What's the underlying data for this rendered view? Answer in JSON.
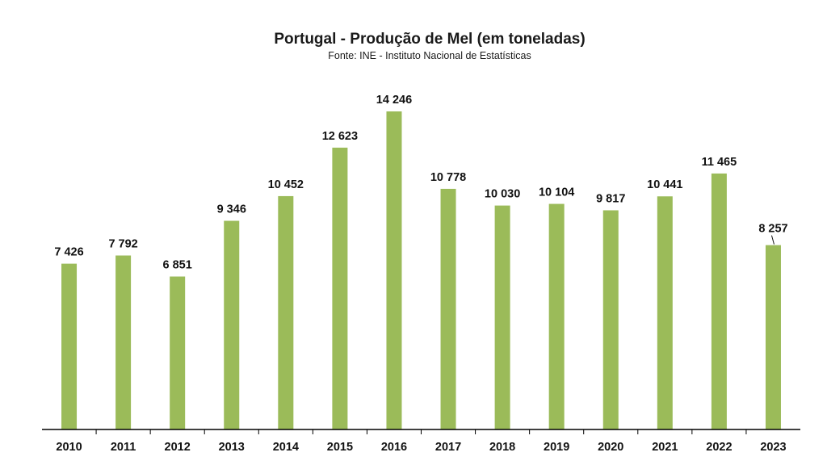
{
  "chart_data": {
    "type": "bar",
    "title": "Portugal - Produção de Mel (em toneladas)",
    "subtitle": "Fonte: INE - Instituto Nacional de Estatísticas",
    "categories": [
      "2010",
      "2011",
      "2012",
      "2013",
      "2014",
      "2015",
      "2016",
      "2017",
      "2018",
      "2019",
      "2020",
      "2021",
      "2022",
      "2023"
    ],
    "series": [
      {
        "values": [
          7426,
          7792,
          6851,
          9346,
          10452,
          12623,
          14246,
          10778,
          10030,
          10104,
          9817,
          10441,
          11465,
          8257
        ]
      }
    ],
    "data_labels": [
      "7 426",
      "7 792",
      "6 851",
      "9 346",
      "10 452",
      "12 623",
      "14 246",
      "10 778",
      "10 030",
      "10 104",
      "9 817",
      "10 441",
      "11 465",
      "8 257"
    ],
    "ylim": [
      0,
      14246
    ],
    "grid": false,
    "legend": "none",
    "colors": {
      "bar": "#9bbb59",
      "highlight_label": "#1fa34a",
      "label": "#111111",
      "axis": "#000000"
    },
    "highlight_index": 6
  }
}
